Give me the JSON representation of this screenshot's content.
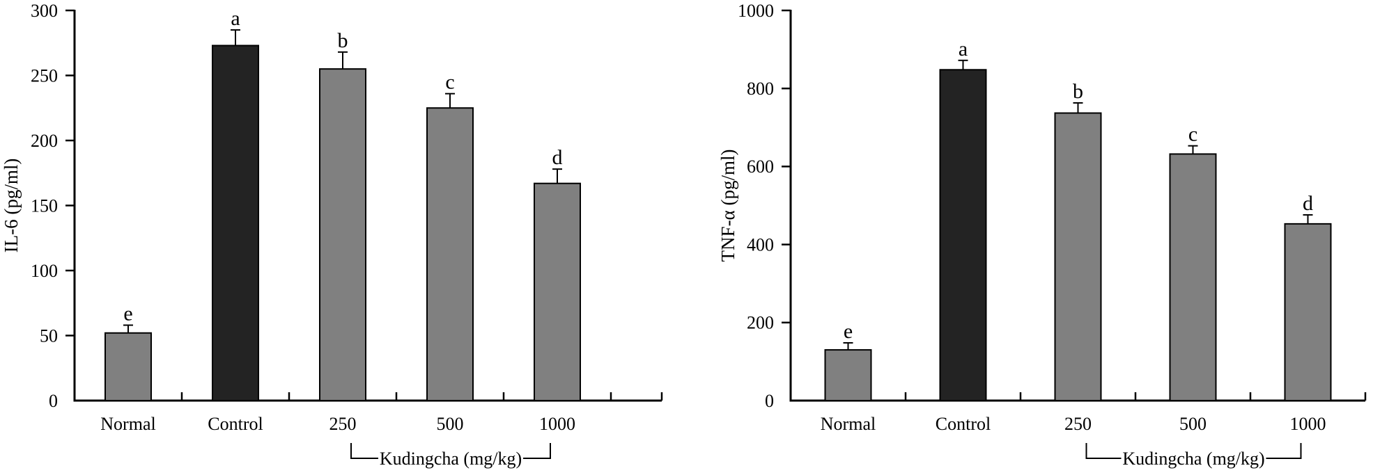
{
  "figure": {
    "background": "#ffffff",
    "axis_color": "#000000",
    "bar_fill_gray": "#808080",
    "bar_fill_black": "#232323",
    "bar_border": "#000000"
  },
  "chart_data": [
    {
      "type": "bar",
      "panel": "left",
      "ylabel": "IL-6 (pg/ml)",
      "xlabel": "",
      "dose_bracket_label": "Kudingcha (mg/kg)",
      "categories": [
        "Normal",
        "Control",
        "250",
        "500",
        "1000"
      ],
      "values": [
        52,
        273,
        255,
        225,
        167
      ],
      "errors": [
        6,
        12,
        13,
        11,
        11
      ],
      "sig_letters": [
        "e",
        "a",
        "b",
        "c",
        "d"
      ],
      "highlight_index": 1,
      "ylim": [
        0,
        300
      ],
      "yticks": [
        0,
        50,
        100,
        150,
        200,
        250,
        300
      ],
      "grid": false,
      "legend": "none"
    },
    {
      "type": "bar",
      "panel": "right",
      "ylabel": "TNF-α (pg/ml)",
      "xlabel": "",
      "dose_bracket_label": "Kudingcha (mg/kg)",
      "categories": [
        "Normal",
        "Control",
        "250",
        "500",
        "1000"
      ],
      "values": [
        130,
        848,
        737,
        632,
        453
      ],
      "errors": [
        18,
        24,
        26,
        21,
        23
      ],
      "sig_letters": [
        "e",
        "a",
        "b",
        "c",
        "d"
      ],
      "highlight_index": 1,
      "ylim": [
        0,
        1000
      ],
      "yticks": [
        0,
        200,
        400,
        600,
        800,
        1000
      ],
      "grid": false,
      "legend": "none"
    }
  ]
}
